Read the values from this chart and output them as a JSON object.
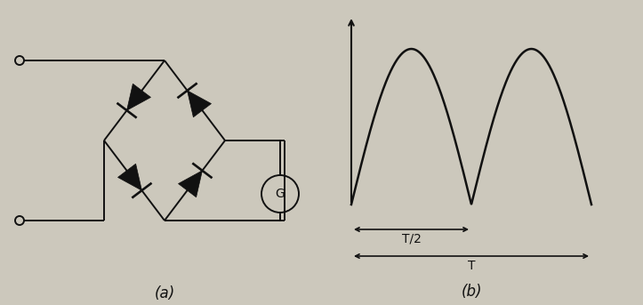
{
  "bg_color": "#ccc8bc",
  "fig_width": 7.23,
  "fig_height": 3.43,
  "dpi": 100,
  "label_a": "(a)",
  "label_b": "(b)",
  "T_half_label": "T/2",
  "T_label": "T",
  "G_label": "G",
  "wave_color": "#111111",
  "circuit_color": "#111111",
  "text_color": "#111111",
  "diode_color": "#111111"
}
